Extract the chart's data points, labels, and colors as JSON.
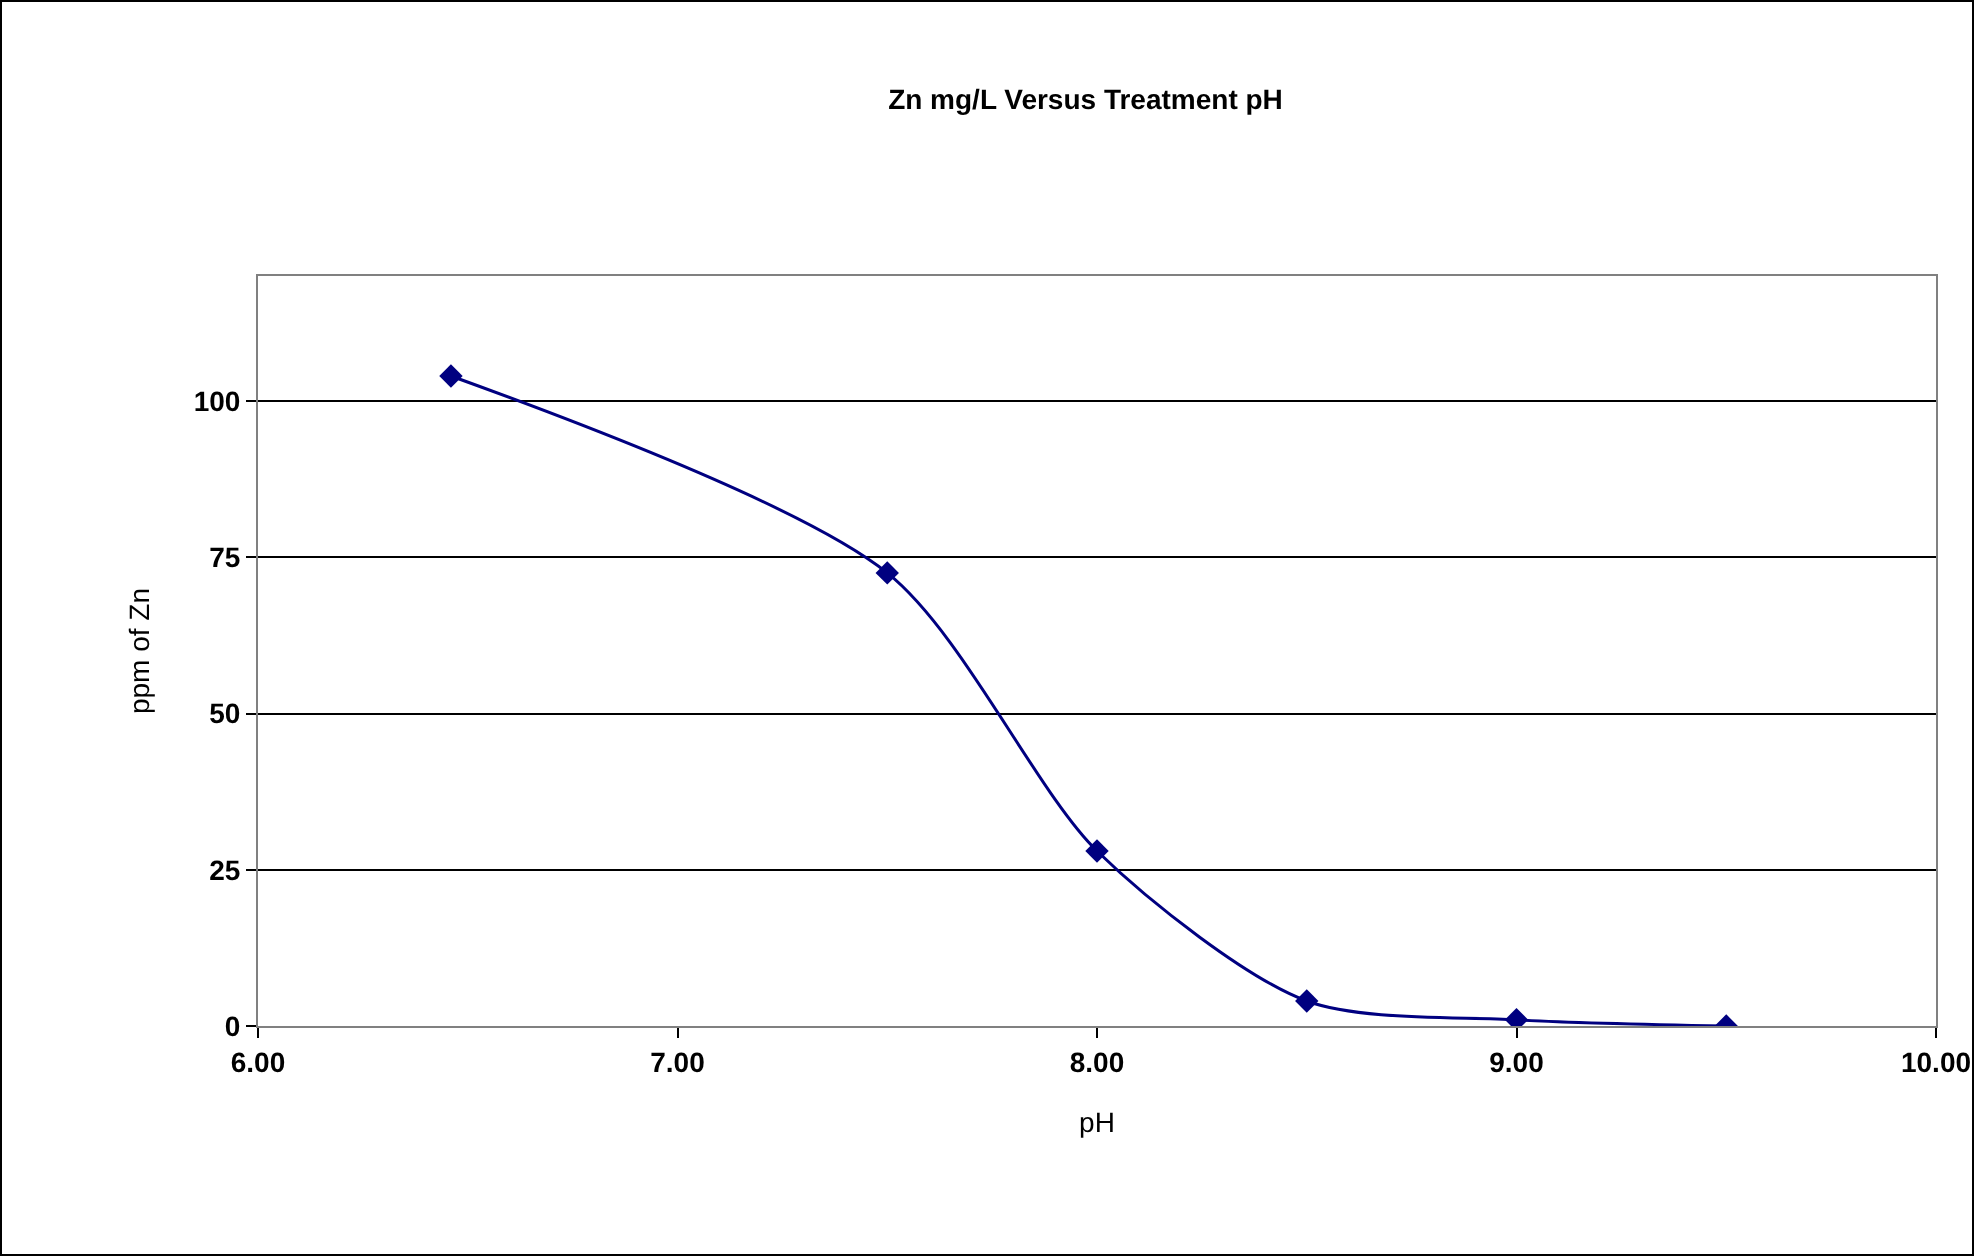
{
  "chart_data": {
    "type": "line",
    "title": "Zn mg/L Versus Treatment pH",
    "xlabel": "pH",
    "ylabel": "ppm of Zn",
    "x": [
      6.46,
      7.5,
      8.0,
      8.5,
      9.0,
      9.5
    ],
    "series": [
      {
        "color": "#000080",
        "values": [
          104,
          72.5,
          28,
          4,
          1,
          0
        ]
      }
    ],
    "xlim": [
      6,
      10
    ],
    "xticks": [
      {
        "value": 6,
        "label": "6.00"
      },
      {
        "value": 7,
        "label": "7.00"
      },
      {
        "value": 8,
        "label": "8.00"
      },
      {
        "value": 9,
        "label": "9.00"
      },
      {
        "value": 10,
        "label": "10.00"
      }
    ],
    "ylim": [
      0,
      120
    ],
    "yticks": [
      0,
      25,
      50,
      75,
      100
    ],
    "grid": "y",
    "marker": "diamond",
    "line_style": "solid"
  }
}
